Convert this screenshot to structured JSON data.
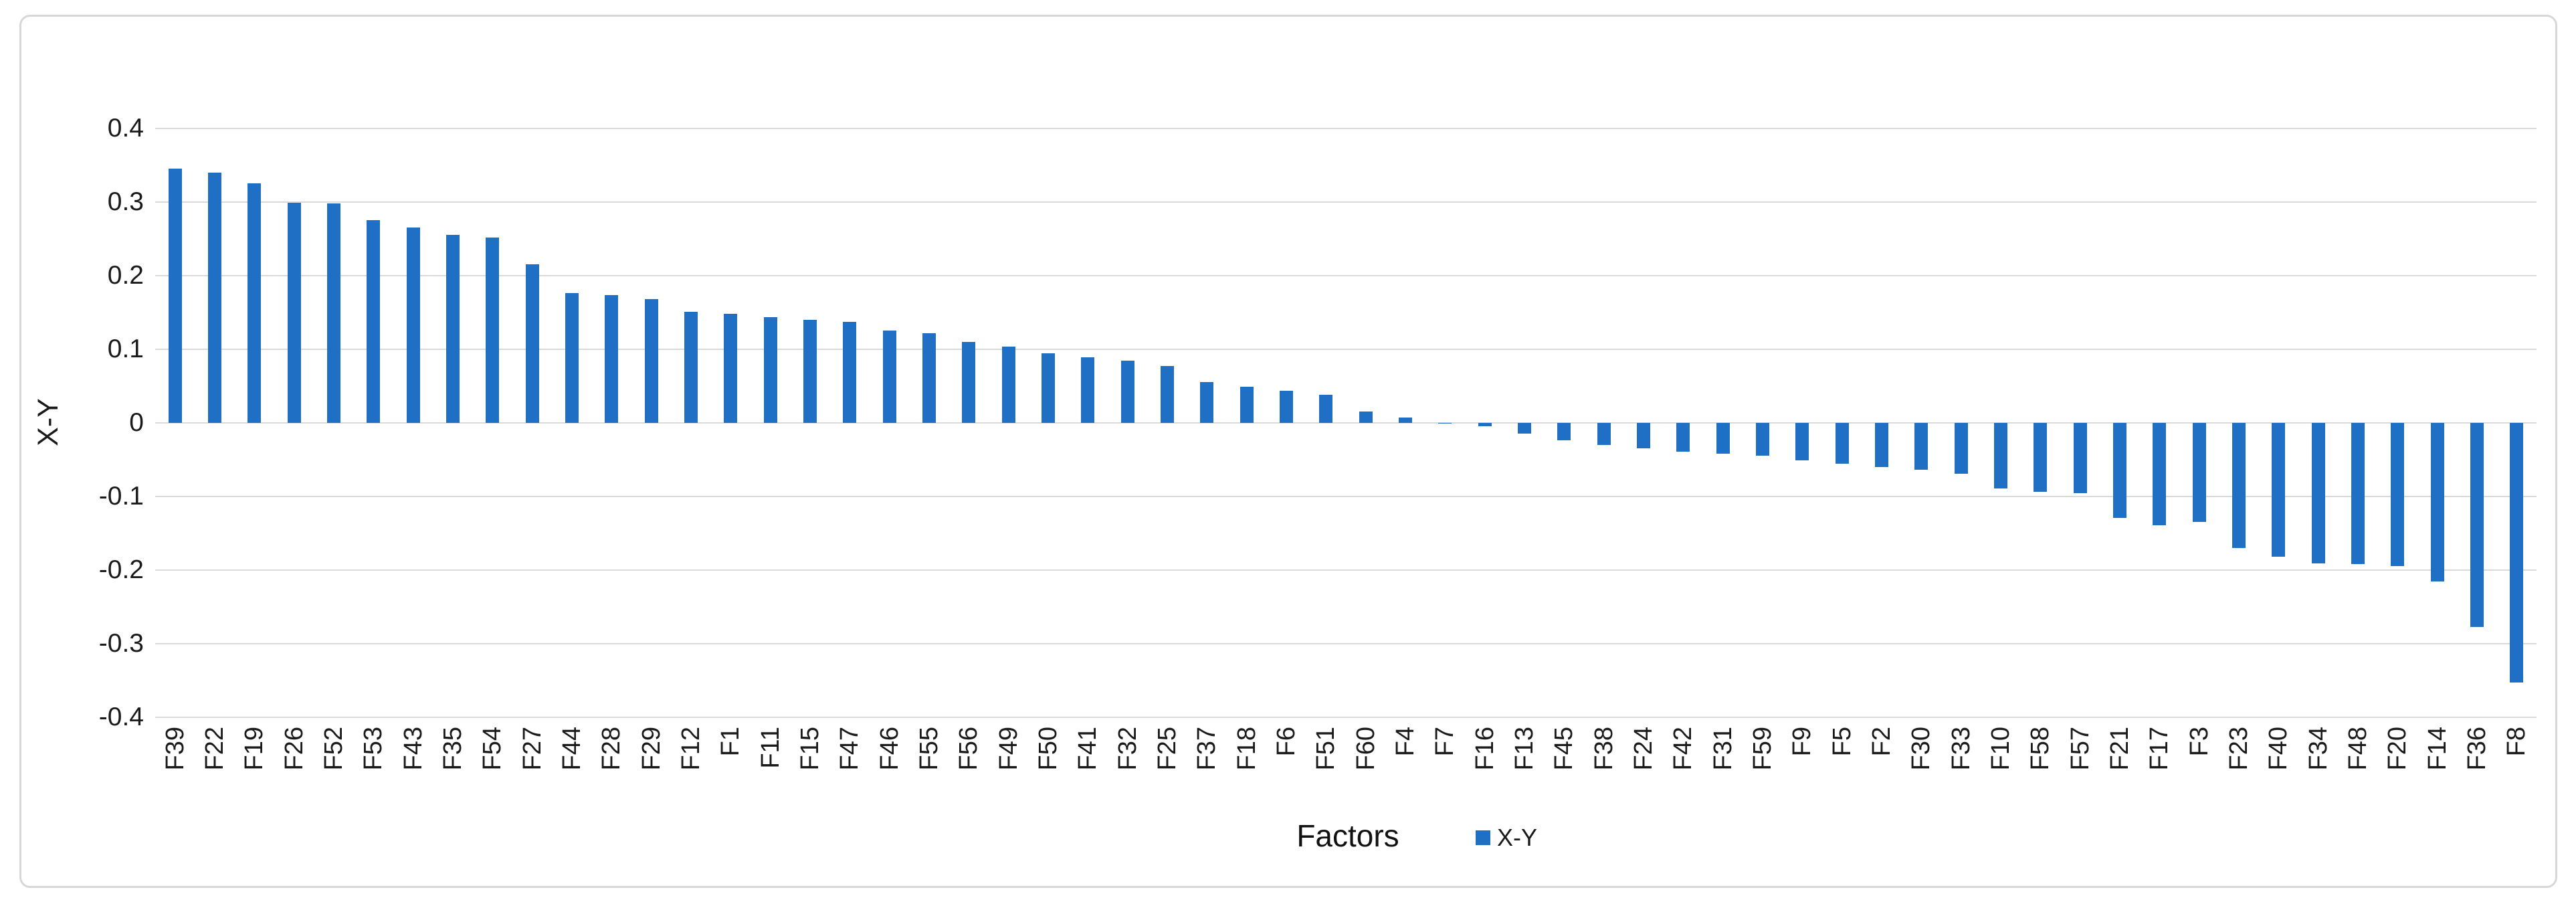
{
  "chart_data": {
    "type": "bar",
    "title": "",
    "xlabel": "Factors",
    "ylabel": "X-Y",
    "grid": true,
    "legend_position": "bottom",
    "ylim": [
      -0.4,
      0.4
    ],
    "ytick_labels": [
      "0.4",
      "0.3",
      "0.2",
      "0.1",
      "0",
      "-0.1",
      "-0.2",
      "-0.3",
      "-0.4"
    ],
    "categories": [
      "F39",
      "F22",
      "F19",
      "F26",
      "F52",
      "F53",
      "F43",
      "F35",
      "F54",
      "F27",
      "F44",
      "F28",
      "F29",
      "F12",
      "F1",
      "F11",
      "F15",
      "F47",
      "F46",
      "F55",
      "F56",
      "F49",
      "F50",
      "F41",
      "F32",
      "F25",
      "F37",
      "F18",
      "F6",
      "F51",
      "F60",
      "F4",
      "F7",
      "F16",
      "F13",
      "F45",
      "F38",
      "F24",
      "F42",
      "F31",
      "F59",
      "F9",
      "F5",
      "F2",
      "F30",
      "F33",
      "F10",
      "F58",
      "F57",
      "F21",
      "F17",
      "F3",
      "F23",
      "F40",
      "F34",
      "F48",
      "F20",
      "F14",
      "F36",
      "F8"
    ],
    "series": [
      {
        "name": "X-Y",
        "color": "#1f6fc4",
        "values": [
          0.345,
          0.34,
          0.325,
          0.299,
          0.298,
          0.275,
          0.265,
          0.255,
          0.252,
          0.215,
          0.176,
          0.173,
          0.168,
          0.151,
          0.148,
          0.143,
          0.14,
          0.137,
          0.125,
          0.122,
          0.11,
          0.103,
          0.094,
          0.089,
          0.084,
          0.077,
          0.055,
          0.049,
          0.043,
          0.038,
          0.015,
          0.007,
          -0.001,
          -0.005,
          -0.015,
          -0.024,
          -0.03,
          -0.035,
          -0.039,
          -0.042,
          -0.045,
          -0.051,
          -0.056,
          -0.06,
          -0.064,
          -0.069,
          -0.089,
          -0.094,
          -0.096,
          -0.129,
          -0.139,
          -0.135,
          -0.17,
          -0.182,
          -0.191,
          -0.192,
          -0.195,
          -0.216,
          -0.278,
          -0.353
        ]
      }
    ],
    "colors": {
      "bar": "#1f6fc4",
      "gridline": "#dadada",
      "axis_text": "#1a1a1a",
      "card_border": "#d7d7d7",
      "background": "#ffffff"
    }
  }
}
